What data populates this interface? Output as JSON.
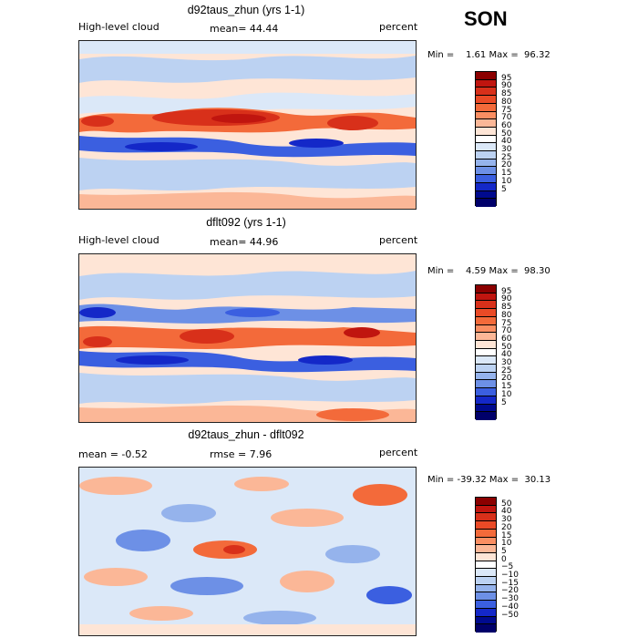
{
  "season": "SON",
  "panels": [
    {
      "title": "d92taus_zhun (yrs 1-1)",
      "left": "High-level cloud",
      "center": "mean=  44.44",
      "right": "percent",
      "minmax": "Min =    1.61 Max =  96.32",
      "levels": [
        "95",
        "90",
        "85",
        "80",
        "75",
        "70",
        "60",
        "50",
        "40",
        "30",
        "25",
        "20",
        "15",
        "10",
        "5"
      ]
    },
    {
      "title": "dflt092 (yrs 1-1)",
      "left": "High-level cloud",
      "center": "mean=  44.96",
      "right": "percent",
      "minmax": "Min =    4.59 Max =  98.30",
      "levels": [
        "95",
        "90",
        "85",
        "80",
        "75",
        "70",
        "60",
        "50",
        "40",
        "30",
        "25",
        "20",
        "15",
        "10",
        "5"
      ]
    },
    {
      "title": "d92taus_zhun - dflt092",
      "left": "mean =   -0.52",
      "center": "rmse =    7.96",
      "right": "percent",
      "minmax": "Min = -39.32 Max =  30.13",
      "levels": [
        "50",
        "40",
        "30",
        "20",
        "15",
        "10",
        "5",
        "0",
        "−5",
        "−10",
        "−15",
        "−20",
        "−30",
        "−40",
        "−50"
      ]
    }
  ],
  "colors": {
    "scale": [
      "#8b0000",
      "#c0150f",
      "#d8301a",
      "#ea4a26",
      "#f36a3a",
      "#fa8e62",
      "#fbb797",
      "#fee5d6",
      "#ffffff",
      "#dbe8f8",
      "#bcd2f2",
      "#95b3ec",
      "#6d90e6",
      "#3b5fe0",
      "#1428c8",
      "#000a8e",
      "#00006a"
    ],
    "coastline": "#111111"
  }
}
